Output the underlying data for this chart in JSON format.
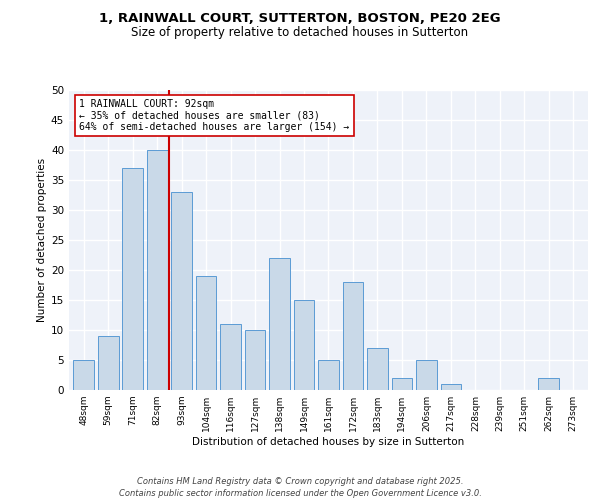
{
  "title1": "1, RAINWALL COURT, SUTTERTON, BOSTON, PE20 2EG",
  "title2": "Size of property relative to detached houses in Sutterton",
  "xlabel": "Distribution of detached houses by size in Sutterton",
  "ylabel": "Number of detached properties",
  "categories": [
    "48sqm",
    "59sqm",
    "71sqm",
    "82sqm",
    "93sqm",
    "104sqm",
    "116sqm",
    "127sqm",
    "138sqm",
    "149sqm",
    "161sqm",
    "172sqm",
    "183sqm",
    "194sqm",
    "206sqm",
    "217sqm",
    "228sqm",
    "239sqm",
    "251sqm",
    "262sqm",
    "273sqm"
  ],
  "values": [
    5,
    9,
    37,
    40,
    33,
    19,
    11,
    10,
    22,
    15,
    5,
    18,
    7,
    2,
    5,
    1,
    0,
    0,
    0,
    2,
    0
  ],
  "bar_color": "#c9d9e8",
  "bar_edge_color": "#5b9bd5",
  "property_line_color": "#cc0000",
  "annotation_text": "1 RAINWALL COURT: 92sqm\n← 35% of detached houses are smaller (83)\n64% of semi-detached houses are larger (154) →",
  "ylim": [
    0,
    50
  ],
  "yticks": [
    0,
    5,
    10,
    15,
    20,
    25,
    30,
    35,
    40,
    45,
    50
  ],
  "background_color": "#eef2f9",
  "grid_color": "#ffffff",
  "footer": "Contains HM Land Registry data © Crown copyright and database right 2025.\nContains public sector information licensed under the Open Government Licence v3.0.",
  "title_fontsize": 9.5,
  "subtitle_fontsize": 8.5,
  "footer_fontsize": 6
}
